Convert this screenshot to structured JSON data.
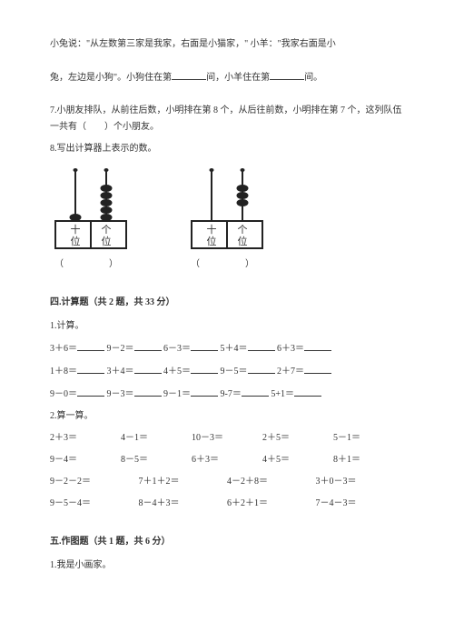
{
  "story": {
    "line1": "小兔说：\"从左数第三家是我家，右面是小猫家，\" 小羊：\"我家右面是小",
    "line2_a": "兔，左边是小狗\"。小狗住在第",
    "line2_b": "间，小羊住在第",
    "line2_c": "间。"
  },
  "q7": "7.小朋友排队，从前往后数，小明排在第 8 个，从后往前数，小明排在第 7 个，这列队伍一共有（　　）个小朋友。",
  "q8": "8.写出计算器上表示的数。",
  "abacus": {
    "label_ten": "十",
    "label_one": "个",
    "label_place": "位",
    "paren": "（　　）",
    "figures": [
      {
        "tens_beads": 1,
        "ones_beads": 5,
        "ones_yoffset": 0
      },
      {
        "tens_beads": 0,
        "ones_beads": 3,
        "ones_yoffset": 16
      }
    ],
    "bead_color": "#222222",
    "frame_color": "#222222",
    "bg": "#ffffff"
  },
  "section4": {
    "title": "四.计算题（共 2 题，共 33 分）",
    "q1_label": "1.计算。",
    "rows_blank": [
      [
        "3＋6＝",
        "9－2＝",
        "6－3＝",
        "5＋4＝",
        "6＋3＝"
      ],
      [
        "1＋8＝",
        "3＋4＝",
        "4＋5＝",
        "9－5＝",
        "2＋7＝"
      ],
      [
        "9－0＝",
        "9－3＝",
        "9－1＝",
        "9-7＝",
        "5+1＝"
      ]
    ],
    "q2_label": "2.算一算。",
    "grid5": [
      [
        "2＋3＝",
        "4－1＝",
        "10－3＝",
        "2＋5＝",
        "5－1＝"
      ],
      [
        "9－4＝",
        "8－5＝",
        "6＋3＝",
        "4＋5＝",
        "8＋1＝"
      ]
    ],
    "grid4": [
      [
        "9－2－2＝",
        "7＋1＋2＝",
        "4－2＋8＝",
        "3＋0－3＝"
      ],
      [
        "9－5－4＝",
        "8－4＋3＝",
        "6＋2＋1＝",
        "7－4－3＝"
      ]
    ]
  },
  "section5": {
    "title": "五.作图题（共 1 题，共 6 分）",
    "q1": "1.我是小画家。"
  },
  "style": {
    "text_color": "#333333",
    "font_size": 10,
    "bold_weight": "bold"
  }
}
